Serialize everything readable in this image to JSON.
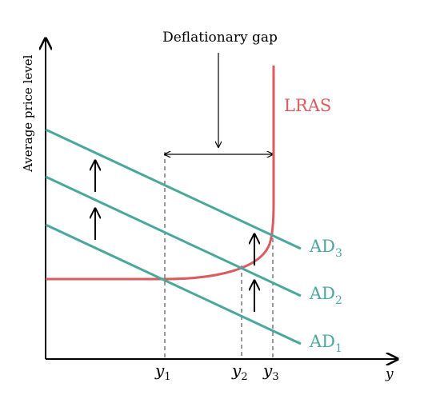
{
  "diagram": {
    "y_axis_label": "Average price level",
    "x_axis_label": "y",
    "gap_label": "Deflationary gap",
    "lras_label": "LRAS",
    "ad_curves": [
      {
        "base": "AD",
        "sub": "1"
      },
      {
        "base": "AD",
        "sub": "2"
      },
      {
        "base": "AD",
        "sub": "3"
      }
    ],
    "x_ticks": [
      {
        "base": "y",
        "sub": "1"
      },
      {
        "base": "y",
        "sub": "2"
      },
      {
        "base": "y",
        "sub": "3"
      }
    ],
    "colors": {
      "ad": "#4aa79c",
      "lras": "#db5b5f",
      "axis": "#000000",
      "guide": "#333333"
    },
    "icons": [
      "up-arrow-icon",
      "down-arrow-icon",
      "double-arrow-icon"
    ]
  }
}
